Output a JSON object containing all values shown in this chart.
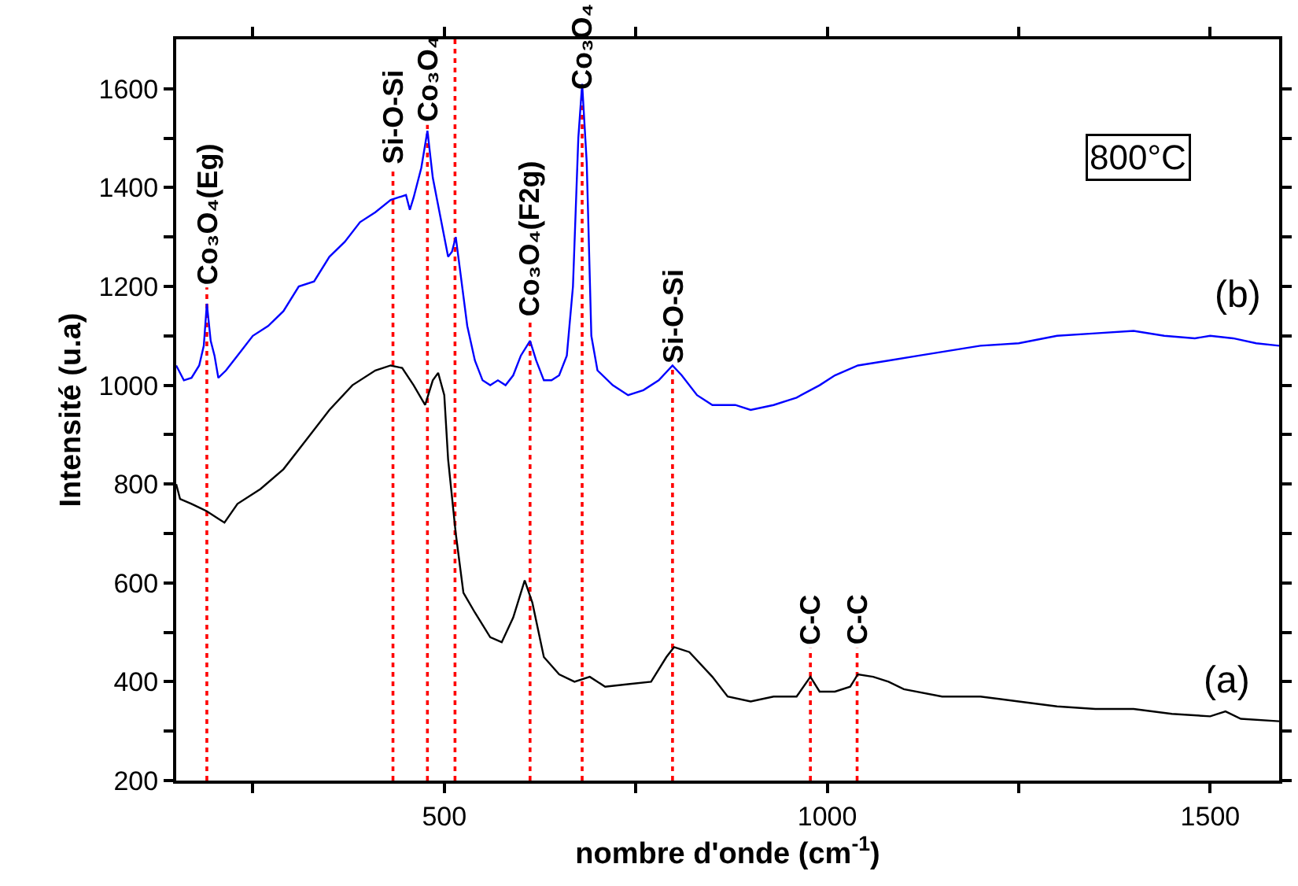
{
  "chart_data": {
    "type": "line",
    "xlabel": "nombre d'onde (cm$^{-1}$)",
    "ylabel": "Intensité (u.a)",
    "xlim": [
      150,
      1590
    ],
    "ylim": [
      200,
      1700
    ],
    "xticks": [
      {
        "value": 250,
        "label": null
      },
      500,
      {
        "value": 750,
        "label": null
      },
      1000,
      {
        "value": 1250,
        "label": null
      },
      1500
    ],
    "yticks": [
      200,
      {
        "value": 300,
        "label": null
      },
      400,
      {
        "value": 500,
        "label": null
      },
      600,
      {
        "value": 700,
        "label": null
      },
      800,
      {
        "value": 900,
        "label": null
      },
      1000,
      {
        "value": 1100,
        "label": null
      },
      1200,
      {
        "value": 1300,
        "label": null
      },
      1400,
      {
        "value": 1500,
        "label": null
      },
      1600
    ],
    "grid": false,
    "legend": false,
    "marker": "none",
    "line_style": "solid",
    "series": [
      {
        "color": "#000000",
        "x": [
          150,
          155,
          170,
          190,
          205,
          213,
          230,
          260,
          290,
          320,
          350,
          380,
          410,
          430,
          445,
          460,
          475,
          485,
          492,
          500,
          505,
          515,
          525,
          540,
          560,
          575,
          590,
          605,
          615,
          630,
          650,
          670,
          690,
          710,
          740,
          770,
          790,
          800,
          820,
          850,
          870,
          900,
          930,
          960,
          978,
          990,
          1010,
          1030,
          1040,
          1060,
          1080,
          1100,
          1150,
          1200,
          1250,
          1300,
          1350,
          1400,
          1450,
          1500,
          1520,
          1540,
          1590
        ],
        "values": [
          800,
          770,
          760,
          745,
          730,
          722,
          760,
          790,
          830,
          890,
          950,
          1000,
          1030,
          1040,
          1035,
          1000,
          960,
          1010,
          1025,
          980,
          850,
          700,
          580,
          540,
          490,
          480,
          530,
          605,
          560,
          450,
          415,
          400,
          410,
          390,
          395,
          400,
          450,
          470,
          460,
          410,
          370,
          360,
          370,
          370,
          410,
          380,
          380,
          390,
          415,
          410,
          400,
          385,
          370,
          370,
          360,
          350,
          345,
          345,
          335,
          330,
          340,
          325,
          320
        ]
      },
      {
        "color": "#0000ff",
        "x": [
          150,
          160,
          170,
          180,
          186,
          190,
          195,
          200,
          205,
          215,
          230,
          250,
          270,
          290,
          310,
          330,
          350,
          370,
          390,
          410,
          430,
          440,
          450,
          455,
          460,
          470,
          478,
          485,
          495,
          505,
          510,
          515,
          520,
          530,
          540,
          550,
          560,
          570,
          580,
          590,
          600,
          612,
          620,
          630,
          640,
          650,
          660,
          668,
          675,
          680,
          686,
          692,
          700,
          720,
          740,
          760,
          780,
          798,
          810,
          830,
          850,
          880,
          900,
          930,
          960,
          990,
          1010,
          1040,
          1080,
          1120,
          1160,
          1200,
          1250,
          1300,
          1350,
          1400,
          1440,
          1480,
          1500,
          1530,
          1560,
          1590
        ],
        "values": [
          1040,
          1010,
          1015,
          1040,
          1080,
          1165,
          1090,
          1060,
          1015,
          1030,
          1060,
          1100,
          1120,
          1150,
          1200,
          1210,
          1260,
          1290,
          1330,
          1350,
          1375,
          1380,
          1385,
          1355,
          1380,
          1440,
          1515,
          1420,
          1340,
          1260,
          1270,
          1300,
          1240,
          1120,
          1050,
          1010,
          1000,
          1010,
          1000,
          1020,
          1060,
          1090,
          1050,
          1010,
          1010,
          1020,
          1060,
          1200,
          1500,
          1610,
          1450,
          1100,
          1030,
          1000,
          980,
          990,
          1010,
          1040,
          1020,
          980,
          960,
          960,
          950,
          960,
          975,
          1000,
          1020,
          1040,
          1050,
          1060,
          1070,
          1080,
          1085,
          1100,
          1105,
          1110,
          1100,
          1095,
          1100,
          1095,
          1085,
          1080
        ]
      }
    ],
    "ref_lines": [
      {
        "axis": "x",
        "value": 190,
        "color": "#ff0000",
        "line_style": "dotted"
      },
      {
        "axis": "x",
        "value": 433,
        "color": "#ff0000",
        "line_style": "dotted"
      },
      {
        "axis": "x",
        "value": 478,
        "color": "#ff0000",
        "line_style": "dotted"
      },
      {
        "axis": "x",
        "value": 514,
        "color": "#ff0000",
        "line_style": "dotted"
      },
      {
        "axis": "x",
        "value": 612,
        "color": "#ff0000",
        "line_style": "dotted"
      },
      {
        "axis": "x",
        "value": 680,
        "color": "#ff0000",
        "line_style": "dotted"
      },
      {
        "axis": "x",
        "value": 798,
        "color": "#ff0000",
        "line_style": "dotted"
      },
      {
        "axis": "x",
        "value": 978,
        "color": "#ff0000",
        "line_style": "dotted"
      },
      {
        "axis": "x",
        "value": 1039,
        "color": "#ff0000",
        "line_style": "dotted"
      }
    ],
    "annotations": [
      "800°C",
      "(b)",
      "(a)",
      {
        "text": "Co₃O₄(Eg)",
        "x": 190,
        "y": 1198
      },
      {
        "text": "Si-O-Si",
        "x": 433,
        "y": 1440
      },
      {
        "text": "Co₃O₄",
        "x": 478,
        "y": 1527
      },
      {
        "text": "Co₃O₄(F2g)",
        "x": 612,
        "y": 1134
      },
      {
        "text": "Co₃O₄",
        "x": 680,
        "y": 1590
      },
      {
        "text": "Si-O-Si",
        "x": 798,
        "y": 1039
      },
      {
        "text": "C-C",
        "x": 978,
        "y": 468
      },
      {
        "text": "C-C",
        "x": 1039,
        "y": 468
      }
    ]
  }
}
